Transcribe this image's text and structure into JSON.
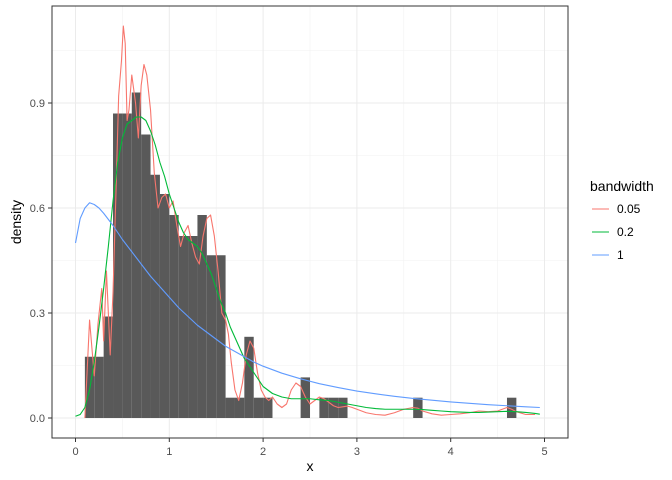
{
  "chart_data": {
    "type": "histogram_density",
    "xlabel": "x",
    "ylabel": "density",
    "xlim": [
      0,
      5
    ],
    "ylim": [
      0,
      1.15
    ],
    "x_ticks": [
      0,
      1,
      2,
      3,
      4,
      5
    ],
    "y_ticks": [
      0.0,
      0.3,
      0.6,
      0.9
    ],
    "y_tick_labels": [
      "0.0",
      "0.3",
      "0.6",
      "0.9"
    ],
    "grid": true,
    "legend_position": "right",
    "legend_title": "bandwidth",
    "histogram": {
      "color": "#595959",
      "bin_width": 0.1,
      "bins": [
        {
          "x": 0.15,
          "y": 0.175
        },
        {
          "x": 0.25,
          "y": 0.175
        },
        {
          "x": 0.35,
          "y": 0.29
        },
        {
          "x": 0.45,
          "y": 0.87
        },
        {
          "x": 0.55,
          "y": 0.87
        },
        {
          "x": 0.65,
          "y": 0.93
        },
        {
          "x": 0.75,
          "y": 0.81
        },
        {
          "x": 0.85,
          "y": 0.695
        },
        {
          "x": 0.95,
          "y": 0.64
        },
        {
          "x": 1.05,
          "y": 0.58
        },
        {
          "x": 1.15,
          "y": 0.52
        },
        {
          "x": 1.25,
          "y": 0.52
        },
        {
          "x": 1.35,
          "y": 0.58
        },
        {
          "x": 1.45,
          "y": 0.465
        },
        {
          "x": 1.55,
          "y": 0.465
        },
        {
          "x": 1.65,
          "y": 0.058
        },
        {
          "x": 1.75,
          "y": 0.058
        },
        {
          "x": 1.85,
          "y": 0.232
        },
        {
          "x": 1.95,
          "y": 0.058
        },
        {
          "x": 2.05,
          "y": 0.058
        },
        {
          "x": 2.45,
          "y": 0.116
        },
        {
          "x": 2.65,
          "y": 0.058
        },
        {
          "x": 2.75,
          "y": 0.058
        },
        {
          "x": 2.85,
          "y": 0.058
        },
        {
          "x": 3.65,
          "y": 0.058
        },
        {
          "x": 4.65,
          "y": 0.058
        }
      ]
    },
    "series": [
      {
        "name": "0.05",
        "color": "#F8766D",
        "x": [
          0.1,
          0.15,
          0.2,
          0.24,
          0.28,
          0.3,
          0.33,
          0.37,
          0.4,
          0.43,
          0.46,
          0.49,
          0.51,
          0.53,
          0.55,
          0.57,
          0.6,
          0.64,
          0.67,
          0.7,
          0.73,
          0.76,
          0.8,
          0.84,
          0.88,
          0.92,
          0.96,
          1.0,
          1.04,
          1.08,
          1.12,
          1.16,
          1.2,
          1.24,
          1.28,
          1.32,
          1.36,
          1.4,
          1.44,
          1.48,
          1.52,
          1.56,
          1.6,
          1.63,
          1.66,
          1.7,
          1.74,
          1.78,
          1.82,
          1.86,
          1.9,
          1.94,
          1.98,
          2.02,
          2.06,
          2.1,
          2.15,
          2.2,
          2.25,
          2.3,
          2.35,
          2.4,
          2.45,
          2.5,
          2.55,
          2.6,
          2.65,
          2.7,
          2.75,
          2.8,
          2.85,
          2.9,
          2.95,
          3.0,
          3.05,
          3.1,
          3.2,
          3.3,
          3.4,
          3.5,
          3.6,
          3.65,
          3.7,
          3.8,
          3.9,
          4.0,
          4.1,
          4.2,
          4.3,
          4.4,
          4.5,
          4.6,
          4.65,
          4.7,
          4.8,
          4.9
        ],
        "y": [
          0.0,
          0.28,
          0.12,
          0.27,
          0.37,
          0.22,
          0.42,
          0.18,
          0.36,
          0.63,
          0.92,
          1.02,
          1.12,
          1.07,
          0.85,
          0.88,
          0.98,
          0.9,
          0.8,
          0.95,
          1.01,
          0.98,
          0.88,
          0.7,
          0.6,
          0.63,
          0.64,
          0.6,
          0.62,
          0.55,
          0.49,
          0.53,
          0.55,
          0.5,
          0.46,
          0.44,
          0.52,
          0.57,
          0.58,
          0.52,
          0.42,
          0.3,
          0.28,
          0.24,
          0.16,
          0.08,
          0.05,
          0.1,
          0.18,
          0.22,
          0.2,
          0.13,
          0.08,
          0.06,
          0.05,
          0.06,
          0.04,
          0.03,
          0.04,
          0.08,
          0.1,
          0.09,
          0.06,
          0.04,
          0.05,
          0.06,
          0.055,
          0.045,
          0.035,
          0.03,
          0.032,
          0.034,
          0.03,
          0.025,
          0.02,
          0.015,
          0.01,
          0.008,
          0.015,
          0.025,
          0.03,
          0.028,
          0.02,
          0.012,
          0.008,
          0.01,
          0.012,
          0.015,
          0.02,
          0.018,
          0.02,
          0.03,
          0.025,
          0.018,
          0.01,
          0.01
        ]
      },
      {
        "name": "0.2",
        "color": "#00BA38",
        "x": [
          0.0,
          0.05,
          0.1,
          0.15,
          0.2,
          0.25,
          0.3,
          0.35,
          0.4,
          0.45,
          0.5,
          0.55,
          0.6,
          0.65,
          0.7,
          0.75,
          0.8,
          0.85,
          0.9,
          0.95,
          1.0,
          1.05,
          1.1,
          1.15,
          1.2,
          1.25,
          1.3,
          1.35,
          1.4,
          1.45,
          1.5,
          1.55,
          1.6,
          1.65,
          1.7,
          1.75,
          1.8,
          1.85,
          1.9,
          1.95,
          2.0,
          2.1,
          2.2,
          2.3,
          2.4,
          2.5,
          2.6,
          2.7,
          2.8,
          2.9,
          3.0,
          3.1,
          3.2,
          3.3,
          3.4,
          3.5,
          3.6,
          3.7,
          3.8,
          3.9,
          4.0,
          4.1,
          4.2,
          4.3,
          4.4,
          4.5,
          4.6,
          4.7,
          4.8,
          4.9,
          4.95
        ],
        "y": [
          0.005,
          0.01,
          0.03,
          0.08,
          0.16,
          0.26,
          0.37,
          0.49,
          0.62,
          0.73,
          0.8,
          0.84,
          0.85,
          0.86,
          0.86,
          0.85,
          0.82,
          0.78,
          0.73,
          0.69,
          0.64,
          0.6,
          0.56,
          0.53,
          0.51,
          0.5,
          0.49,
          0.47,
          0.44,
          0.41,
          0.37,
          0.33,
          0.3,
          0.26,
          0.23,
          0.2,
          0.17,
          0.15,
          0.13,
          0.11,
          0.09,
          0.07,
          0.06,
          0.055,
          0.055,
          0.055,
          0.052,
          0.05,
          0.045,
          0.04,
          0.035,
          0.03,
          0.027,
          0.025,
          0.025,
          0.025,
          0.025,
          0.024,
          0.022,
          0.02,
          0.018,
          0.017,
          0.016,
          0.016,
          0.017,
          0.018,
          0.019,
          0.018,
          0.016,
          0.013,
          0.011
        ]
      },
      {
        "name": "1",
        "color": "#619CFF",
        "x": [
          0.0,
          0.05,
          0.1,
          0.15,
          0.2,
          0.25,
          0.3,
          0.4,
          0.5,
          0.6,
          0.7,
          0.8,
          0.9,
          1.0,
          1.1,
          1.2,
          1.3,
          1.4,
          1.5,
          1.6,
          1.7,
          1.8,
          1.9,
          2.0,
          2.2,
          2.4,
          2.6,
          2.8,
          3.0,
          3.2,
          3.4,
          3.6,
          3.8,
          4.0,
          4.2,
          4.4,
          4.6,
          4.8,
          4.95
        ],
        "y": [
          0.5,
          0.57,
          0.6,
          0.615,
          0.61,
          0.6,
          0.585,
          0.55,
          0.51,
          0.475,
          0.44,
          0.405,
          0.375,
          0.345,
          0.315,
          0.29,
          0.265,
          0.245,
          0.225,
          0.205,
          0.19,
          0.175,
          0.16,
          0.148,
          0.128,
          0.112,
          0.098,
          0.087,
          0.077,
          0.069,
          0.062,
          0.056,
          0.051,
          0.046,
          0.042,
          0.038,
          0.035,
          0.032,
          0.03
        ]
      }
    ]
  }
}
